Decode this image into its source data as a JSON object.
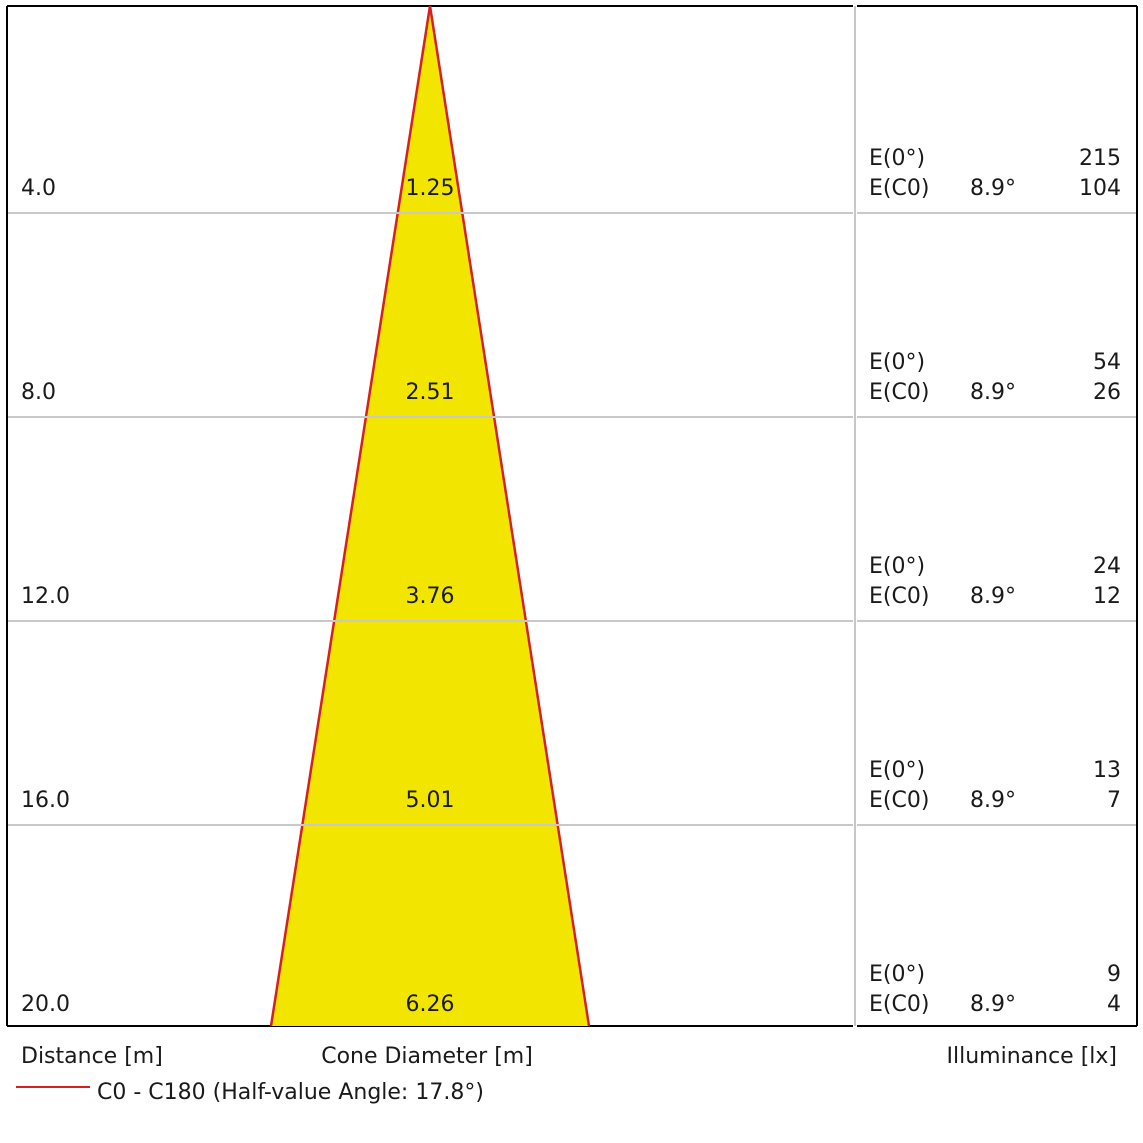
{
  "chart_data": {
    "type": "cone",
    "axis_labels": {
      "distance": "Distance [m]",
      "diameter": "Cone Diameter [m]",
      "illuminance": "Illuminance [lx]"
    },
    "legend": {
      "label": "C0 - C180 (Half-value Angle: 17.8°)",
      "color": "#d62020"
    },
    "colors": {
      "cone_fill": "#f2e600",
      "cone_edge": "#d62020",
      "frame": "#000000",
      "grid": "#c8c8c8"
    },
    "half_value_angle_deg": 17.8,
    "max_distance": 20.0,
    "e0_label": "E(0°)",
    "ec0_label": "E(C0)",
    "rows": [
      {
        "distance": "4.0",
        "diameter": "1.25",
        "e0": "215",
        "angle": "8.9°",
        "ec0": "104"
      },
      {
        "distance": "8.0",
        "diameter": "2.51",
        "e0": "54",
        "angle": "8.9°",
        "ec0": "26"
      },
      {
        "distance": "12.0",
        "diameter": "3.76",
        "e0": "24",
        "angle": "8.9°",
        "ec0": "12"
      },
      {
        "distance": "16.0",
        "diameter": "5.01",
        "e0": "13",
        "angle": "8.9°",
        "ec0": "7"
      },
      {
        "distance": "20.0",
        "diameter": "6.26",
        "e0": "9",
        "angle": "8.9°",
        "ec0": "4"
      }
    ]
  }
}
